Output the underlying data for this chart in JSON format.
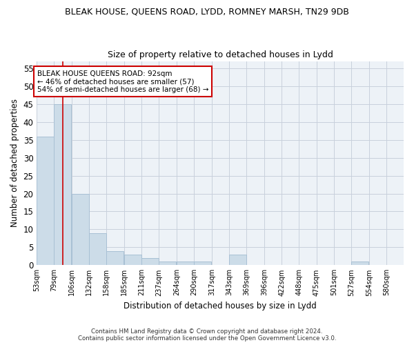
{
  "title": "BLEAK HOUSE, QUEENS ROAD, LYDD, ROMNEY MARSH, TN29 9DB",
  "subtitle": "Size of property relative to detached houses in Lydd",
  "xlabel": "Distribution of detached houses by size in Lydd",
  "ylabel": "Number of detached properties",
  "footer_line1": "Contains HM Land Registry data © Crown copyright and database right 2024.",
  "footer_line2": "Contains public sector information licensed under the Open Government Licence v3.0.",
  "bins": [
    53,
    79,
    106,
    132,
    158,
    185,
    211,
    237,
    264,
    290,
    317,
    343,
    369,
    396,
    422,
    448,
    475,
    501,
    527,
    554,
    580
  ],
  "values": [
    36,
    45,
    20,
    9,
    4,
    3,
    2,
    1,
    1,
    1,
    0,
    3,
    0,
    0,
    0,
    0,
    0,
    0,
    1,
    0,
    0
  ],
  "bar_color": "#ccdce8",
  "bar_edge_color": "#a8c0d4",
  "grid_color": "#c8d0dc",
  "bg_color": "#edf2f7",
  "property_size": 92,
  "red_line_color": "#cc0000",
  "annotation_text_line1": "BLEAK HOUSE QUEENS ROAD: 92sqm",
  "annotation_text_line2": "← 46% of detached houses are smaller (57)",
  "annotation_text_line3": "54% of semi-detached houses are larger (68) →",
  "annotation_box_color": "#cc0000",
  "annotation_bg_color": "#ffffff",
  "ylim": [
    0,
    57
  ],
  "yticks": [
    0,
    5,
    10,
    15,
    20,
    25,
    30,
    35,
    40,
    45,
    50,
    55
  ]
}
